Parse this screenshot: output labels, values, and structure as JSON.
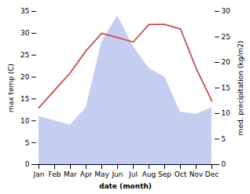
{
  "chart_data": {
    "type": "line",
    "categories": [
      "Jan",
      "Feb",
      "Mar",
      "Apr",
      "May",
      "Jun",
      "Jul",
      "Aug",
      "Sep",
      "Oct",
      "Nov",
      "Dec"
    ],
    "series": [
      {
        "type": "area",
        "color": "#c5cdf0",
        "values": [
          11,
          10,
          9,
          13,
          28,
          34,
          27,
          22,
          20,
          12,
          11.5,
          13
        ]
      },
      {
        "type": "line",
        "color": "#c0504d",
        "values": [
          13,
          17,
          21,
          26,
          30,
          29,
          28,
          32,
          32,
          31,
          22,
          14.5
        ]
      }
    ],
    "xlabel": "date (month)",
    "ylabel": "max temp (C)",
    "y2label": "med. precipitation (kg/m2)",
    "ylim": [
      0,
      35
    ],
    "yticks": [
      0,
      5,
      10,
      15,
      20,
      25,
      30,
      35
    ],
    "y2lim": [
      0,
      30
    ],
    "y2ticks": [
      0,
      5,
      10,
      15,
      20,
      25,
      30
    ],
    "grid": false
  }
}
